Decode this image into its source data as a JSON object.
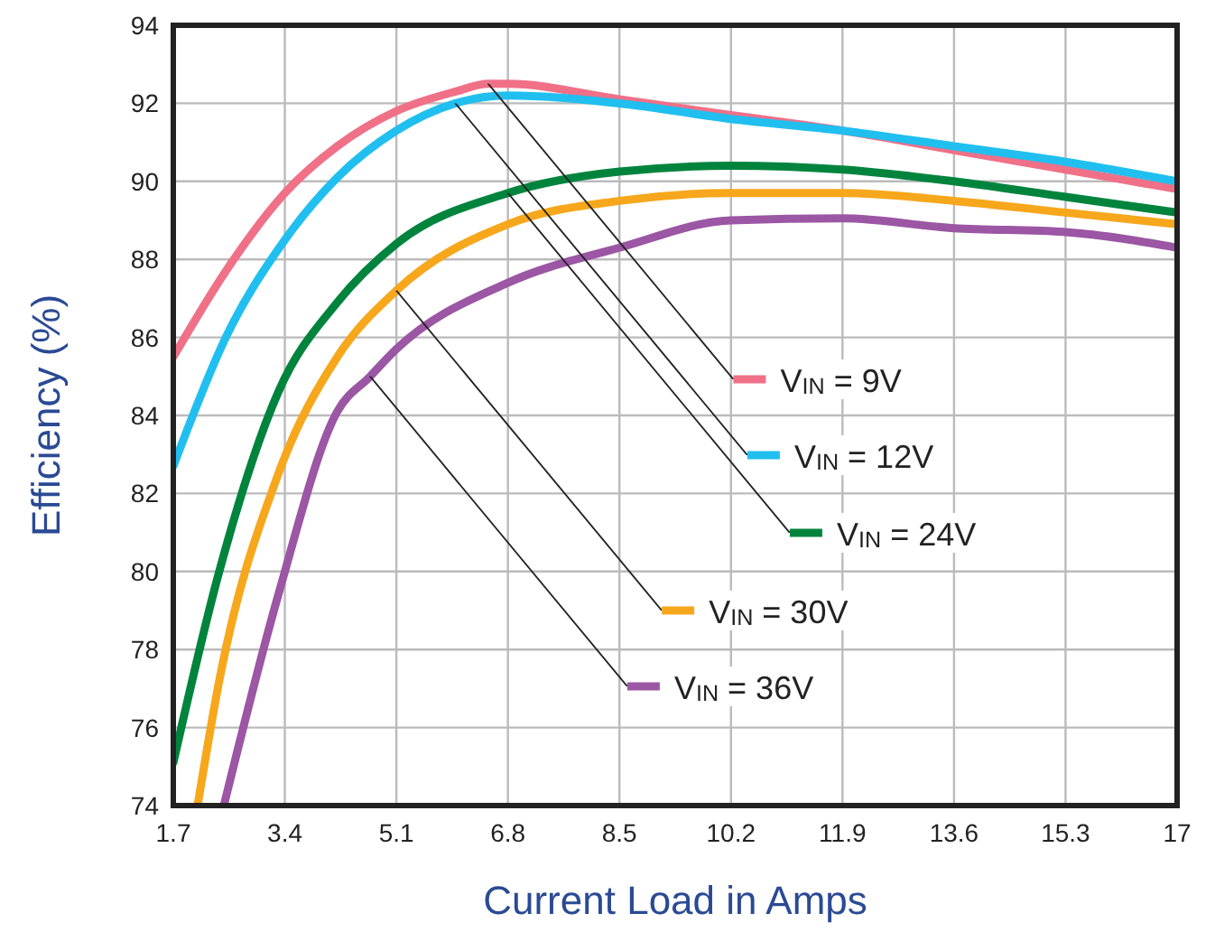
{
  "chart_data": {
    "type": "line",
    "xlabel": "Current Load in Amps",
    "ylabel": "Efficiency (%)",
    "xlim": [
      1.7,
      17
    ],
    "xticks": [
      1.7,
      3.4,
      5.1,
      6.8,
      8.5,
      10.2,
      11.9,
      13.6,
      15.3,
      17
    ],
    "ylim": [
      74,
      94
    ],
    "yticks": [
      74,
      76,
      78,
      80,
      82,
      84,
      86,
      88,
      90,
      92,
      94
    ],
    "grid": true,
    "legend": "right",
    "marker": "none",
    "line_style": "solid",
    "series": [
      {
        "name": "V$_{IN}$ = 9V",
        "color": "#f07088",
        "x": [
          1.7,
          2.5,
          3.4,
          4.2,
          5.1,
          6.0,
          6.5,
          6.8,
          8.5,
          10.2,
          11.9,
          13.6,
          15.3,
          17
        ],
        "values": [
          85.5,
          87.7,
          89.7,
          90.9,
          91.8,
          92.3,
          92.5,
          92.5,
          92.1,
          91.7,
          91.3,
          90.8,
          90.3,
          89.8
        ]
      },
      {
        "name": "V$_{IN}$ = 12V",
        "color": "#20bff0",
        "x": [
          1.7,
          2.5,
          3.4,
          4.2,
          5.1,
          6.0,
          6.8,
          8.5,
          10.2,
          11.9,
          13.6,
          15.3,
          17
        ],
        "values": [
          82.7,
          86.0,
          88.5,
          90.1,
          91.3,
          92.0,
          92.2,
          92.0,
          91.6,
          91.3,
          90.9,
          90.5,
          90.0
        ]
      },
      {
        "name": "V$_{IN}$ = 24V",
        "color": "#00843d",
        "x": [
          1.7,
          2.4,
          3.3,
          4.2,
          5.1,
          6.8,
          8.5,
          10.2,
          11.9,
          13.6,
          15.3,
          17
        ],
        "values": [
          75.1,
          80.0,
          84.6,
          86.9,
          88.4,
          89.7,
          90.25,
          90.4,
          90.3,
          90.0,
          89.6,
          89.2
        ]
      },
      {
        "name": "V$_{IN}$ = 30V",
        "color": "#f7a71c",
        "x": [
          2.07,
          2.4,
          3.3,
          4.2,
          5.1,
          6.8,
          8.5,
          10.2,
          11.9,
          13.6,
          15.3,
          17
        ],
        "values": [
          74,
          77.2,
          82.5,
          85.5,
          87.2,
          88.9,
          89.5,
          89.7,
          89.7,
          89.5,
          89.2,
          88.9
        ]
      },
      {
        "name": "V$_{IN}$ = 36V",
        "color": "#9b56a4",
        "x": [
          2.47,
          3.3,
          4.2,
          4.7,
          5.1,
          6.8,
          8.5,
          10.2,
          11.9,
          13.6,
          15.3,
          17
        ],
        "values": [
          74,
          79.4,
          84.1,
          85.0,
          85.7,
          87.4,
          88.3,
          89.0,
          89.05,
          88.8,
          88.7,
          88.3
        ]
      }
    ]
  }
}
